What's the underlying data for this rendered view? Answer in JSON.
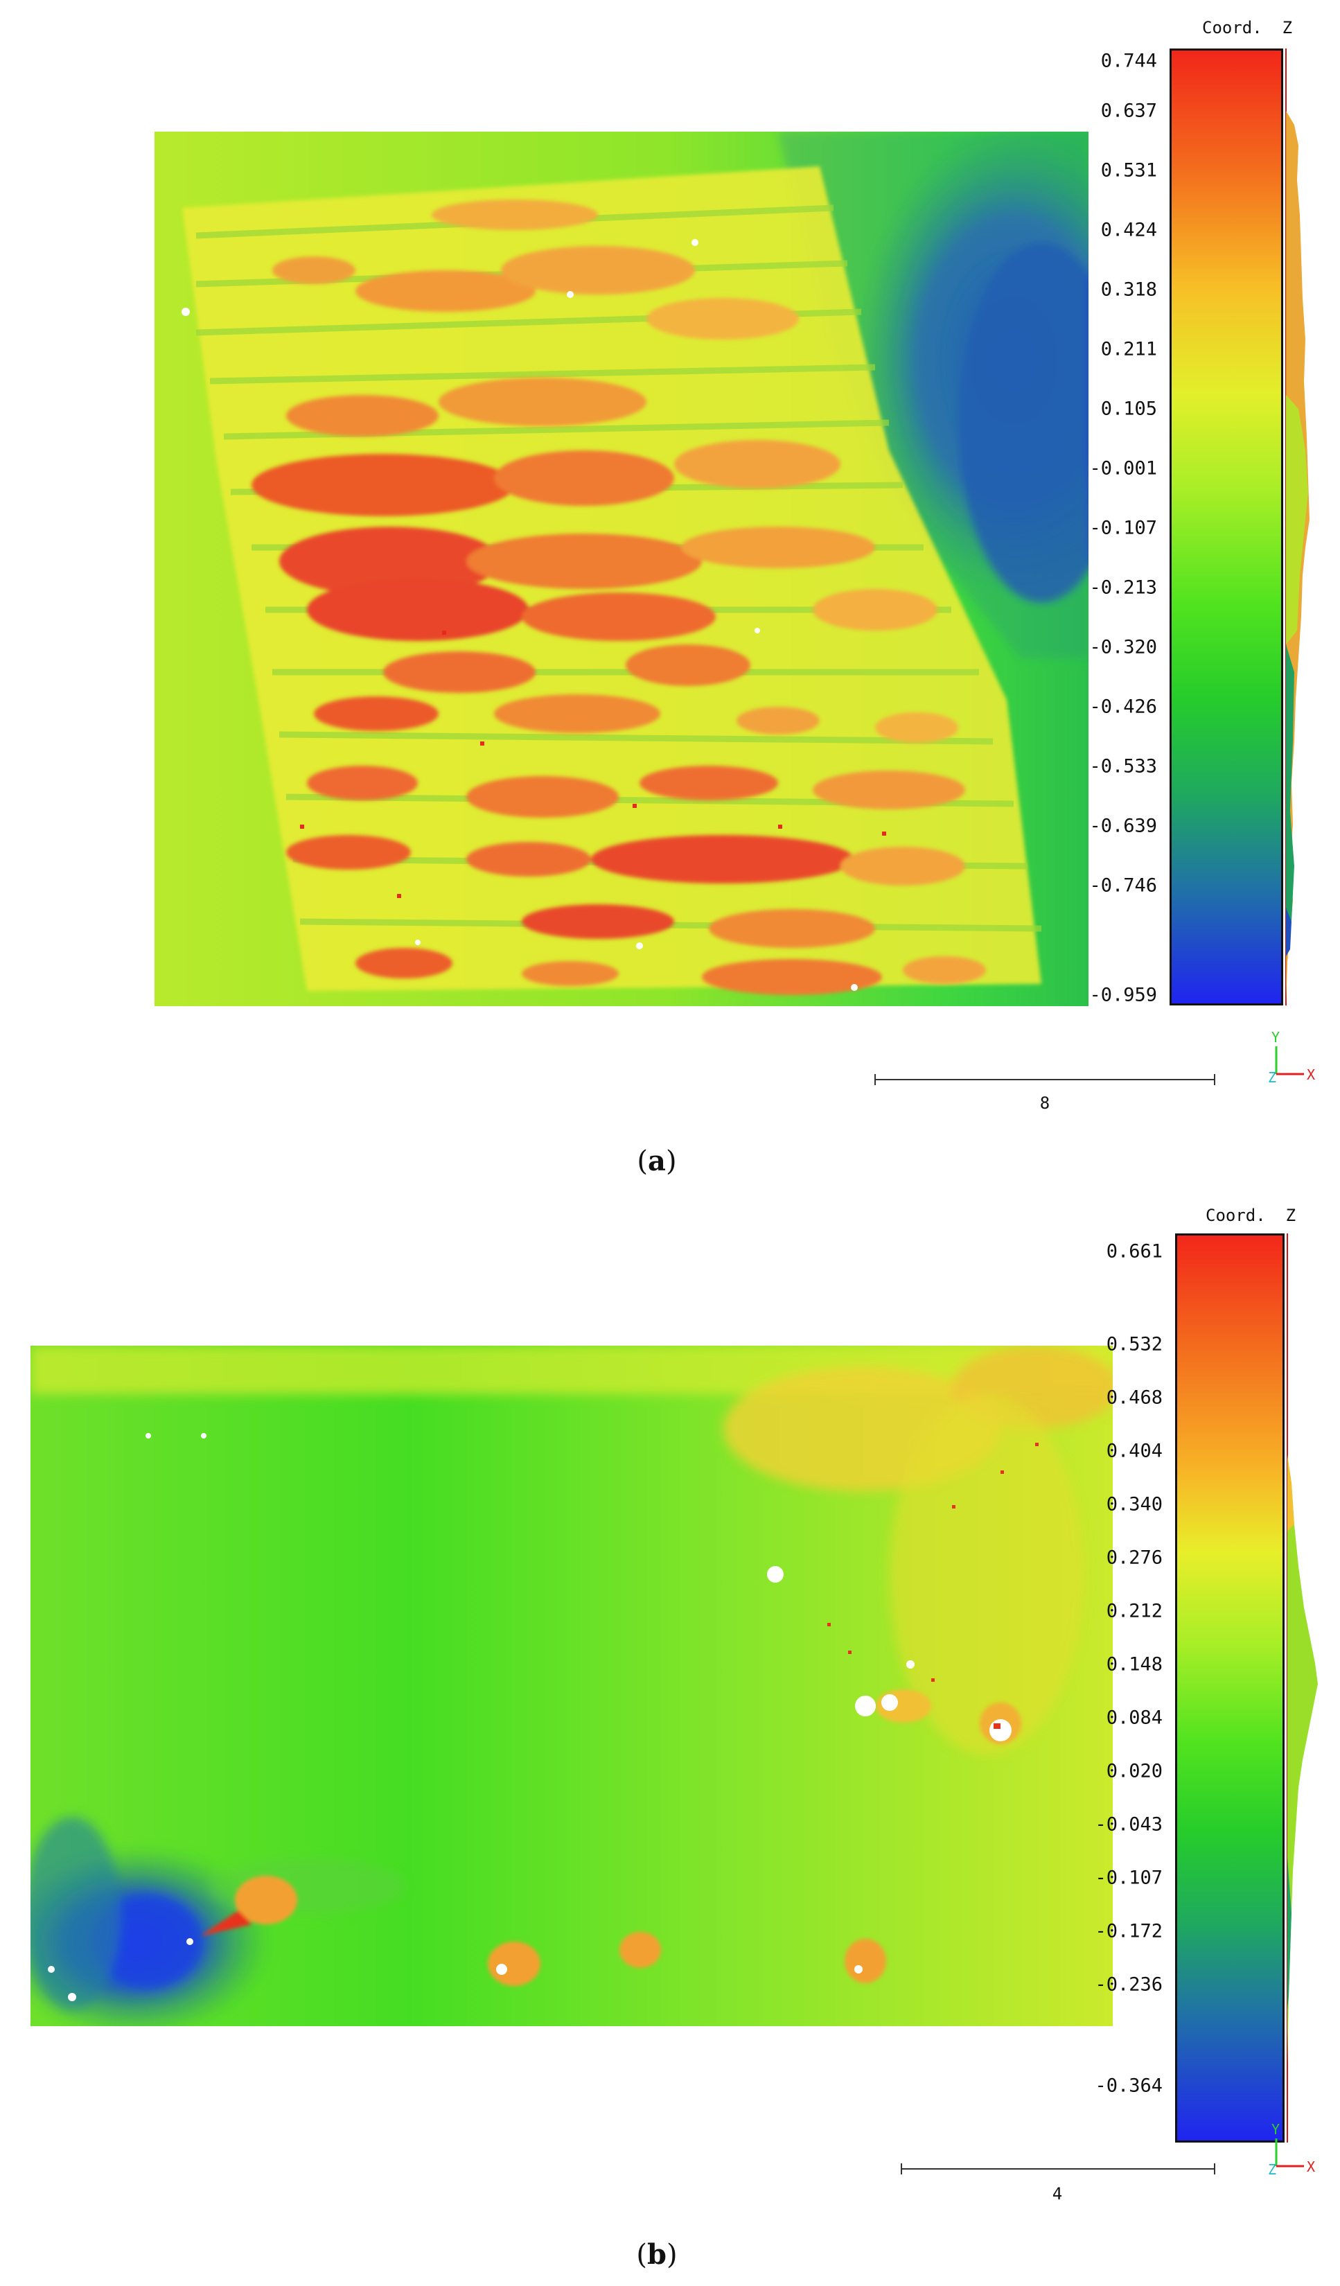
{
  "panels": [
    {
      "id": "a",
      "caption_letter": "a",
      "colorbar": {
        "title": "Coord.  Z",
        "ticks": [
          "0.744",
          "0.637",
          "0.531",
          "0.424",
          "0.318",
          "0.211",
          "0.105",
          "-0.001",
          "-0.107",
          "-0.213",
          "-0.320",
          "-0.426",
          "-0.533",
          "-0.639",
          "-0.746",
          "-0.959"
        ]
      },
      "scale_label": "8",
      "axis": {
        "y": "Y",
        "z": "Z",
        "x": "X"
      }
    },
    {
      "id": "b",
      "caption_letter": "b",
      "colorbar": {
        "title": "Coord.  Z",
        "ticks": [
          "0.661",
          "0.532",
          "0.468",
          "0.404",
          "0.340",
          "0.276",
          "0.212",
          "0.148",
          "0.084",
          "0.020",
          "-0.043",
          "-0.107",
          "-0.172",
          "-0.236",
          "-0.364"
        ]
      },
      "scale_label": "4",
      "axis": {
        "y": "Y",
        "z": "Z",
        "x": "X"
      }
    }
  ],
  "colors": {
    "red": "#e8331c",
    "orange": "#f39a1f",
    "yellow": "#e9ef2a",
    "yellow_green": "#b8ee2e",
    "green": "#3fe01f",
    "teal": "#20918a",
    "blue": "#1f3ae6",
    "axis_y": "#2bd02b",
    "axis_z": "#20b8c8",
    "axis_x": "#e02020"
  }
}
